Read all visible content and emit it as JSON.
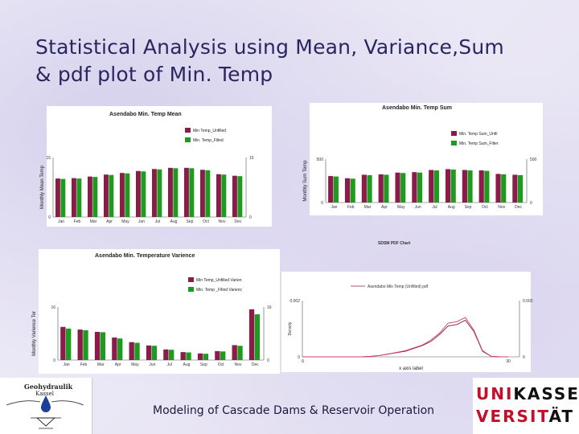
{
  "slide": {
    "title_line1": "Statistical Analysis using Mean, Variance,Sum",
    "title_line2": "& pdf plot  of Min. Temp",
    "footer": "Modeling of Cascade Dams & Reservoir Operation"
  },
  "logos": {
    "left_line1": "Geohydraulik",
    "left_line2": "Kassel",
    "right_red1": "UNI",
    "right_black1": "KASSEL",
    "right_red2": "VERSIT",
    "right_black2": "ÄT"
  },
  "colors": {
    "unfilled": "#8b1c4a",
    "filled": "#1e9a1e",
    "pdf_unfilled": "#8b1c4a",
    "pdf_filled": "#d04060"
  },
  "chart_data": [
    {
      "type": "bar",
      "title": "Asendabo Min. Temp Mean",
      "ylabel": "Monthly Mean Temp",
      "categories": [
        "Jan",
        "Feb",
        "Mar",
        "Apr",
        "May",
        "Jun",
        "Jul",
        "Aug",
        "Sep",
        "Oct",
        "Nov",
        "Dec"
      ],
      "ylim": [
        0,
        15
      ],
      "yticks_left": [
        "15",
        "0"
      ],
      "yticks_right": [
        "15",
        "0"
      ],
      "series": [
        {
          "name": "Min Temp_Unfilled",
          "values": [
            9.7,
            9.8,
            10.2,
            10.7,
            11.1,
            11.6,
            12.1,
            12.4,
            12.4,
            11.9,
            10.8,
            10.4
          ]
        },
        {
          "name": "Min. Temp_Filled",
          "values": [
            9.6,
            9.7,
            10.1,
            10.6,
            11.0,
            11.5,
            12.0,
            12.3,
            12.3,
            11.8,
            10.7,
            10.3
          ]
        }
      ]
    },
    {
      "type": "bar",
      "title": "Asendabo Min. Temp Sum",
      "ylabel": "Monthly Sum Temp",
      "categories": [
        "Jan",
        "Feb",
        "Mar",
        "Apr",
        "May",
        "Jun",
        "Jul",
        "Aug",
        "Sep",
        "Oct",
        "Nov",
        "Dec"
      ],
      "ylim": [
        0,
        500
      ],
      "yticks_left": [
        "500",
        "0"
      ],
      "yticks_right": [
        "500",
        "0"
      ],
      "series": [
        {
          "name": "Min. Temp Sum_Unfil",
          "values": [
            305,
            280,
            320,
            325,
            345,
            350,
            375,
            385,
            375,
            370,
            330,
            320
          ]
        },
        {
          "name": "Min. Temp Sum_Filter",
          "values": [
            300,
            275,
            315,
            320,
            340,
            345,
            370,
            380,
            370,
            365,
            325,
            315
          ]
        }
      ]
    },
    {
      "type": "bar",
      "title": "Asendabo Min. Temperature Varience",
      "ylabel": "Monthly Varience Ter",
      "categories": [
        "Jan",
        "Feb",
        "Mar",
        "Apr",
        "May",
        "Jun",
        "Jul",
        "Aug",
        "Sep",
        "Oct",
        "Nov",
        "Dec"
      ],
      "ylim": [
        0,
        16
      ],
      "yticks_left": [
        "16",
        "0"
      ],
      "yticks_right": [
        "16",
        "0"
      ],
      "series": [
        {
          "name": "Min Temp_Unfilled Varien",
          "values": [
            10.0,
            9.2,
            8.5,
            6.8,
            5.4,
            4.4,
            3.2,
            2.4,
            2.0,
            2.7,
            4.5,
            15.3
          ]
        },
        {
          "name": "Min. Temp _Filled Varienc",
          "values": [
            9.5,
            9.0,
            8.4,
            6.5,
            5.2,
            4.3,
            3.1,
            2.3,
            1.9,
            2.6,
            4.3,
            13.8
          ]
        }
      ]
    },
    {
      "type": "line",
      "title": "SDSM PDF Chart",
      "xlabel": "x axis label",
      "ylabel": "Density",
      "ylim": [
        0,
        0.002
      ],
      "yticks_left": [
        "0.002",
        "0"
      ],
      "yticks_right": [
        "0.002",
        "0"
      ],
      "xticks": [
        "-5",
        "30"
      ],
      "legend": "Asendabo Min Temp (Unfilled) pdf",
      "series": [
        {
          "name": "unfilled",
          "values": [
            0,
            0,
            0,
            0,
            0,
            0,
            0,
            0,
            2e-05,
            5e-05,
            0.0001,
            0.00015,
            0.0002,
            0.0003,
            0.0004,
            0.00055,
            0.0008,
            0.0011,
            0.00115,
            0.0013,
            0.0009,
            0.0002,
            2e-05,
            0,
            0
          ]
        },
        {
          "name": "filled",
          "values": [
            0,
            0,
            0,
            0,
            0,
            0,
            0,
            0,
            2e-05,
            5e-05,
            0.0001,
            0.00016,
            0.00022,
            0.00032,
            0.00042,
            0.0006,
            0.00085,
            0.0012,
            0.00125,
            0.0014,
            0.00095,
            0.00022,
            2e-05,
            0,
            0
          ]
        }
      ]
    }
  ]
}
